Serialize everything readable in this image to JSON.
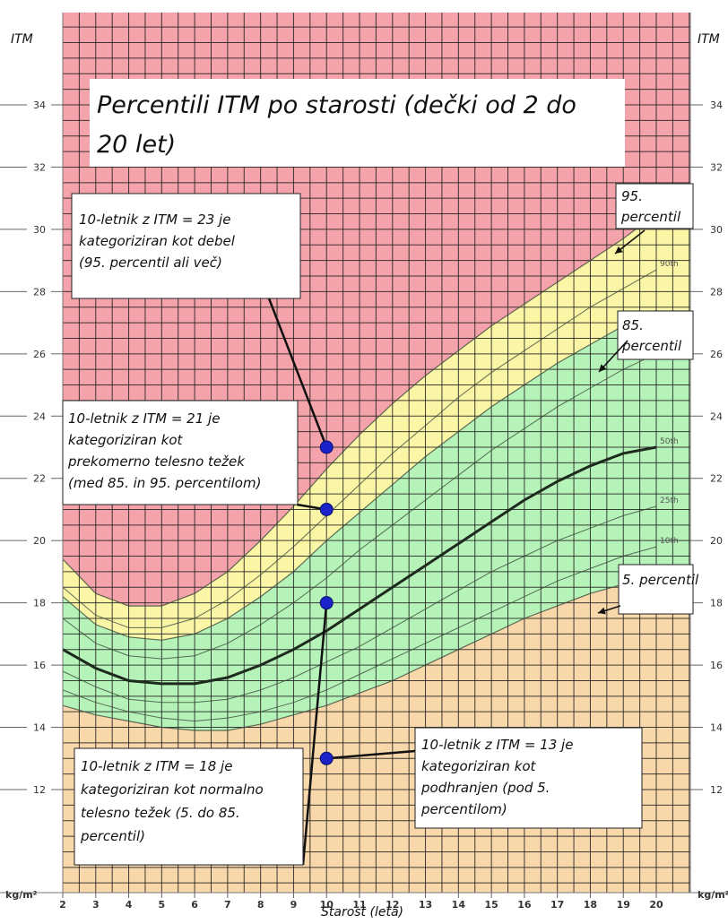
{
  "chart_data": {
    "type": "line",
    "title": "Percentili ITM po starosti (dečki od 2 do 20 let)",
    "title_lines": [
      "Percentili ITM po starosti (dečki od 2 do",
      "20 let)"
    ],
    "xlabel": "Starost (leta)",
    "ylabel": "ITM",
    "ylabel_unit": "kg/m²",
    "xlim": [
      2,
      20
    ],
    "ylim": [
      10.4,
      36
    ],
    "x_ticks": [
      2,
      3,
      4,
      5,
      6,
      7,
      8,
      9,
      10,
      11,
      12,
      13,
      14,
      15,
      16,
      17,
      18,
      19,
      20
    ],
    "y_ticks": [
      12,
      14,
      16,
      18,
      20,
      22,
      24,
      26,
      28,
      30,
      32,
      34
    ],
    "grid": true,
    "x": [
      2,
      3,
      4,
      5,
      6,
      7,
      8,
      9,
      10,
      11,
      12,
      13,
      14,
      15,
      16,
      17,
      18,
      19,
      20
    ],
    "series": [
      {
        "name": "95th",
        "values": [
          19.4,
          18.3,
          17.9,
          17.9,
          18.3,
          19.0,
          20.0,
          21.1,
          22.3,
          23.4,
          24.4,
          25.3,
          26.1,
          26.9,
          27.6,
          28.3,
          29.0,
          29.7,
          30.5
        ]
      },
      {
        "name": "90th",
        "values": [
          18.5,
          17.6,
          17.2,
          17.2,
          17.5,
          18.1,
          18.9,
          19.8,
          20.8,
          21.8,
          22.8,
          23.7,
          24.6,
          25.4,
          26.1,
          26.8,
          27.5,
          28.1,
          28.7
        ]
      },
      {
        "name": "85th",
        "values": [
          18.2,
          17.3,
          16.9,
          16.8,
          17.0,
          17.5,
          18.2,
          19.0,
          20.0,
          20.9,
          21.8,
          22.7,
          23.5,
          24.3,
          25.0,
          25.7,
          26.3,
          26.9,
          27.4
        ]
      },
      {
        "name": "75th",
        "values": [
          17.5,
          16.7,
          16.3,
          16.2,
          16.3,
          16.7,
          17.3,
          18.0,
          18.8,
          19.7,
          20.5,
          21.3,
          22.1,
          22.9,
          23.6,
          24.3,
          24.9,
          25.5,
          26.0
        ]
      },
      {
        "name": "50th",
        "values": [
          16.5,
          15.9,
          15.5,
          15.4,
          15.4,
          15.6,
          16.0,
          16.5,
          17.1,
          17.8,
          18.5,
          19.2,
          19.9,
          20.6,
          21.3,
          21.9,
          22.4,
          22.8,
          23.0
        ]
      },
      {
        "name": "25th",
        "values": [
          15.8,
          15.3,
          14.9,
          14.8,
          14.8,
          14.9,
          15.2,
          15.6,
          16.1,
          16.6,
          17.2,
          17.8,
          18.4,
          19.0,
          19.5,
          20.0,
          20.4,
          20.8,
          21.1
        ]
      },
      {
        "name": "10th",
        "values": [
          15.2,
          14.8,
          14.5,
          14.3,
          14.2,
          14.3,
          14.5,
          14.8,
          15.2,
          15.7,
          16.2,
          16.7,
          17.2,
          17.7,
          18.2,
          18.7,
          19.1,
          19.5,
          19.8
        ]
      },
      {
        "name": "5th",
        "values": [
          14.7,
          14.4,
          14.2,
          14.0,
          13.9,
          13.9,
          14.1,
          14.4,
          14.7,
          15.1,
          15.5,
          16.0,
          16.5,
          17.0,
          17.5,
          17.9,
          18.3,
          18.6,
          18.9
        ]
      }
    ],
    "points": [
      {
        "x": 10,
        "y": 23
      },
      {
        "x": 10,
        "y": 21
      },
      {
        "x": 10,
        "y": 18
      },
      {
        "x": 10,
        "y": 13
      }
    ],
    "annotations": {
      "obese": [
        "10-letnik z ITM = 23 je",
        "kategoriziran kot debel",
        "(95. percentil ali več)"
      ],
      "overweight": [
        "10-letnik z ITM = 21 je",
        "kategoriziran kot",
        "prekomerno telesno težek",
        "(med 85. in 95. percentilom)"
      ],
      "normal": [
        "10-letnik z ITM = 18 je",
        "kategoriziran kot normalno",
        "telesno težek (5. do 85.",
        "percentil)"
      ],
      "underweight": [
        "10-letnik z ITM = 13 je",
        "kategoriziran kot",
        "podhranjen (pod 5.",
        "percentilom)"
      ],
      "p95": [
        "95.",
        "percentil"
      ],
      "p85": [
        "85.",
        "percentil"
      ],
      "p5": [
        "5. percentil"
      ]
    },
    "colors": {
      "obese": "#f4a3aa",
      "overweight": "#fbf6a6",
      "normal": "#b6f3b9",
      "underweight": "#f8d7ab",
      "grid": "#1f1f1f",
      "point": "#1a22c8"
    }
  }
}
